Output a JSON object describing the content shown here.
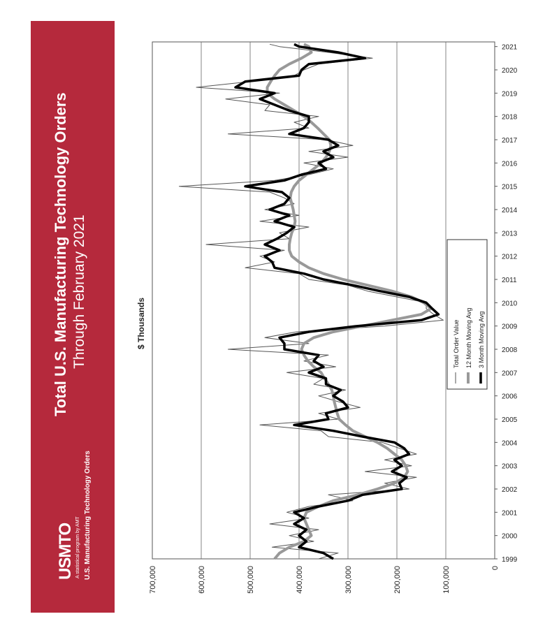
{
  "banner": {
    "title": "Total U.S. Manufacturing Technology Orders",
    "subtitle": "Through February 2021",
    "logo": "USMTO",
    "tagline": "A statistical program by AMT",
    "program": "U.S. Manufacturing Technology Orders",
    "color": "#b5293c"
  },
  "chart_data": {
    "type": "line",
    "title": "",
    "xlabel": "",
    "ylabel": "$ Thousands",
    "ylim": [
      0,
      700000
    ],
    "xlim": [
      1999,
      2021.2
    ],
    "yticks": [
      0,
      100000,
      200000,
      300000,
      400000,
      500000,
      600000,
      700000
    ],
    "ytick_labels": [
      "0",
      "100,000",
      "200,000",
      "300,000",
      "400,000",
      "500,000",
      "600,000",
      "700,000"
    ],
    "xticks": [
      1999,
      2000,
      2001,
      2002,
      2003,
      2004,
      2005,
      2006,
      2007,
      2008,
      2009,
      2010,
      2011,
      2012,
      2013,
      2014,
      2015,
      2016,
      2017,
      2018,
      2019,
      2020,
      2021
    ],
    "xtick_labels": [
      "1999",
      "2000",
      "2001",
      "2002",
      "2003",
      "2004",
      "2005",
      "2006",
      "2007",
      "2008",
      "2009",
      "2010",
      "2011",
      "2012",
      "2013",
      "2014",
      "2015",
      "2016",
      "2017",
      "2018",
      "2019",
      "2020",
      "2021"
    ],
    "grid": "horizontal",
    "legend_position": "center",
    "x": [
      1999.0,
      1999.25,
      1999.5,
      1999.75,
      2000.0,
      2000.25,
      2000.5,
      2000.75,
      2001.0,
      2001.25,
      2001.5,
      2001.75,
      2002.0,
      2002.25,
      2002.5,
      2002.75,
      2003.0,
      2003.25,
      2003.5,
      2003.75,
      2004.0,
      2004.25,
      2004.5,
      2004.75,
      2005.0,
      2005.25,
      2005.5,
      2005.75,
      2006.0,
      2006.25,
      2006.5,
      2006.75,
      2007.0,
      2007.25,
      2007.5,
      2007.75,
      2008.0,
      2008.25,
      2008.5,
      2008.75,
      2009.0,
      2009.25,
      2009.5,
      2009.75,
      2010.0,
      2010.25,
      2010.5,
      2010.75,
      2011.0,
      2011.25,
      2011.5,
      2011.75,
      2012.0,
      2012.25,
      2012.5,
      2012.75,
      2013.0,
      2013.25,
      2013.5,
      2013.75,
      2014.0,
      2014.25,
      2014.5,
      2014.75,
      2015.0,
      2015.25,
      2015.5,
      2015.75,
      2016.0,
      2016.25,
      2016.5,
      2016.75,
      2017.0,
      2017.25,
      2017.5,
      2017.75,
      2018.0,
      2018.25,
      2018.5,
      2018.75,
      2019.0,
      2019.25,
      2019.5,
      2019.75,
      2020.0,
      2020.25,
      2020.5,
      2020.75,
      2021.0,
      2021.1
    ],
    "series": [
      {
        "name": "Total Order Value",
        "color": "#555555",
        "values": [
          360000,
          320000,
          455000,
          370000,
          420000,
          360000,
          460000,
          380000,
          425000,
          380000,
          290000,
          340000,
          175000,
          225000,
          160000,
          265000,
          170000,
          225000,
          160000,
          195000,
          230000,
          340000,
          355000,
          480000,
          320000,
          360000,
          275000,
          320000,
          360000,
          305000,
          370000,
          350000,
          425000,
          325000,
          390000,
          340000,
          545000,
          380000,
          470000,
          405000,
          225000,
          105000,
          125000,
          140000,
          140000,
          200000,
          260000,
          300000,
          380000,
          400000,
          510000,
          450000,
          480000,
          430000,
          590000,
          420000,
          440000,
          380000,
          480000,
          400000,
          470000,
          410000,
          430000,
          460000,
          645000,
          450000,
          380000,
          330000,
          390000,
          300000,
          380000,
          290000,
          345000,
          545000,
          380000,
          410000,
          360000,
          470000,
          460000,
          550000,
          440000,
          610000,
          500000,
          410000,
          390000,
          360000,
          250000,
          340000,
          440000,
          460000
        ]
      },
      {
        "name": "12 Month Moving Avg",
        "color": "#999999",
        "values": [
          450000,
          440000,
          420000,
          390000,
          375000,
          380000,
          385000,
          390000,
          385000,
          360000,
          330000,
          280000,
          240000,
          205000,
          185000,
          178000,
          182000,
          190000,
          205000,
          220000,
          240000,
          265000,
          290000,
          305000,
          318000,
          322000,
          325000,
          328000,
          330000,
          333000,
          340000,
          348000,
          355000,
          370000,
          382000,
          390000,
          395000,
          390000,
          370000,
          330000,
          270000,
          210000,
          150000,
          130000,
          145000,
          170000,
          210000,
          260000,
          310000,
          350000,
          380000,
          400000,
          415000,
          420000,
          420000,
          418000,
          415000,
          410000,
          408000,
          410000,
          412000,
          415000,
          418000,
          416000,
          410000,
          400000,
          385000,
          370000,
          355000,
          345000,
          338000,
          335000,
          338000,
          350000,
          362000,
          375000,
          390000,
          410000,
          430000,
          450000,
          465000,
          465000,
          458000,
          450000,
          440000,
          420000,
          395000,
          375000,
          380000,
          390000
        ]
      },
      {
        "name": "3 Month Moving Avg",
        "color": "#000000",
        "values": [
          330000,
          350000,
          400000,
          385000,
          400000,
          385000,
          410000,
          390000,
          410000,
          360000,
          300000,
          270000,
          190000,
          195000,
          180000,
          210000,
          190000,
          205000,
          175000,
          185000,
          205000,
          270000,
          330000,
          410000,
          340000,
          345000,
          300000,
          310000,
          330000,
          315000,
          345000,
          345000,
          380000,
          350000,
          370000,
          360000,
          430000,
          430000,
          440000,
          380000,
          280000,
          150000,
          115000,
          128000,
          140000,
          175000,
          235000,
          290000,
          350000,
          390000,
          450000,
          455000,
          470000,
          440000,
          470000,
          445000,
          425000,
          410000,
          450000,
          420000,
          460000,
          430000,
          420000,
          435000,
          510000,
          430000,
          395000,
          345000,
          360000,
          330000,
          350000,
          320000,
          340000,
          420000,
          390000,
          380000,
          380000,
          420000,
          450000,
          480000,
          450000,
          530000,
          510000,
          400000,
          395000,
          380000,
          265000,
          320000,
          400000,
          410000
        ]
      }
    ]
  }
}
